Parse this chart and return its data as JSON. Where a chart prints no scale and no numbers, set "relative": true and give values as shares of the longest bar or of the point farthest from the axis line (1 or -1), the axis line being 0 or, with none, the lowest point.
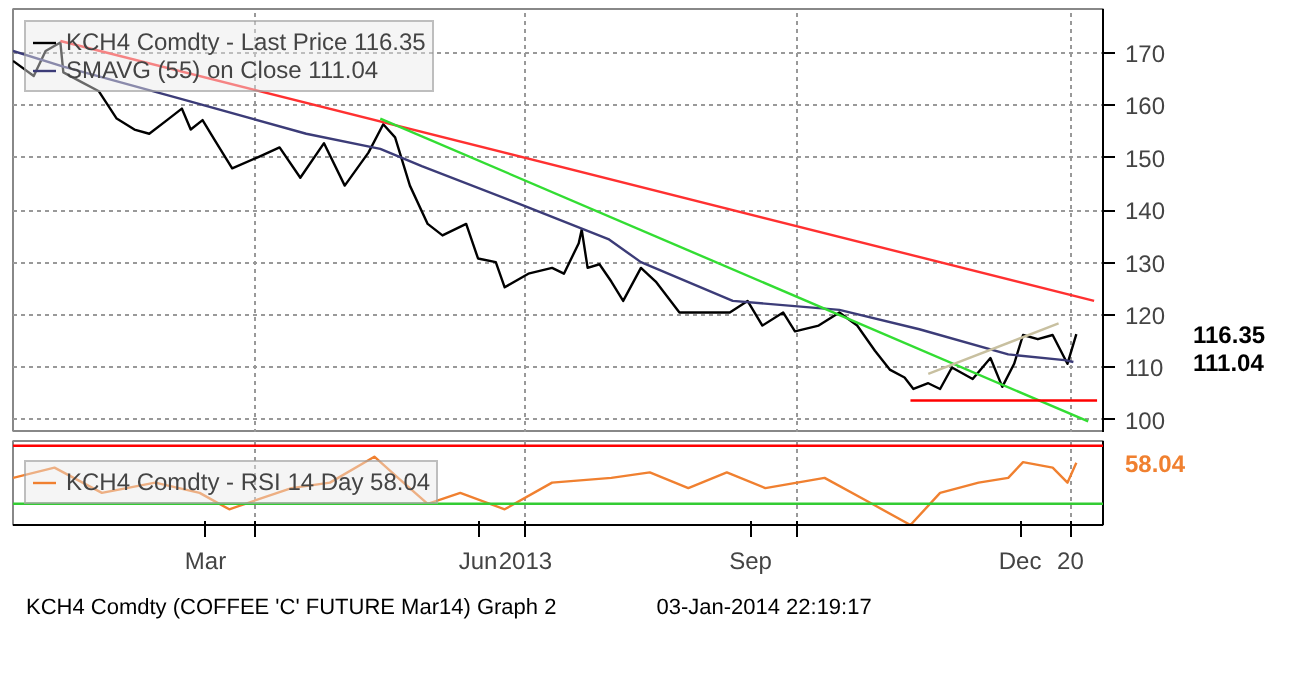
{
  "chart_data": [
    {
      "type": "line",
      "legend": "top left",
      "grid": true,
      "tick_labels": "y",
      "line_style": "solid",
      "marker": "none",
      "xlim": [
        "2013-01-09",
        "2014-01-12"
      ],
      "ylim": [
        97.5,
        178.4
      ],
      "yticks": [
        100,
        110,
        120,
        130,
        140,
        150,
        160,
        170
      ],
      "xticks": [
        {
          "value": "2013-04-01",
          "label": null
        },
        {
          "value": "2013-07-01",
          "label": null
        },
        {
          "value": "2013-10-01",
          "label": null
        },
        {
          "value": "2014-01-01",
          "label": null
        }
      ],
      "series": [
        {
          "name": "KCH4 Comdty - Last Price 116.35",
          "color": "#000000",
          "x": [
            "2013-01-09",
            "2013-01-16",
            "2013-01-20",
            "2013-01-25",
            "2013-01-26",
            "2013-02-01",
            "2013-02-07",
            "2013-02-13",
            "2013-02-19",
            "2013-02-24",
            "2013-03-02",
            "2013-03-07",
            "2013-03-10",
            "2013-03-14",
            "2013-03-18",
            "2013-03-24",
            "2013-04-02",
            "2013-04-09",
            "2013-04-16",
            "2013-04-24",
            "2013-05-01",
            "2013-05-09",
            "2013-05-14",
            "2013-05-18",
            "2013-05-23",
            "2013-05-29",
            "2013-06-03",
            "2013-06-11",
            "2013-06-15",
            "2013-06-21",
            "2013-06-24",
            "2013-07-02",
            "2013-07-10",
            "2013-07-14",
            "2013-07-19",
            "2013-07-20",
            "2013-07-22",
            "2013-07-26",
            "2013-07-30",
            "2013-08-03",
            "2013-08-09",
            "2013-08-14",
            "2013-08-22",
            "2013-08-30",
            "2013-09-08",
            "2013-09-14",
            "2013-09-19",
            "2013-09-26",
            "2013-09-30",
            "2013-10-08",
            "2013-10-15",
            "2013-10-21",
            "2013-10-27",
            "2013-11-01",
            "2013-11-06",
            "2013-11-09",
            "2013-11-14",
            "2013-11-18",
            "2013-11-22",
            "2013-11-29",
            "2013-12-05",
            "2013-12-09",
            "2013-12-13",
            "2013-12-16",
            "2013-12-21",
            "2013-12-26",
            "2013-12-31",
            "2014-01-03"
          ],
          "values": [
            168.5,
            165.6,
            170.4,
            172,
            166.3,
            164.5,
            162.7,
            157.5,
            155.4,
            154.6,
            157.2,
            159.4,
            155.4,
            157.2,
            153.5,
            148,
            150.2,
            152,
            146.2,
            152.8,
            144.7,
            151,
            156.4,
            153.9,
            144.7,
            137.4,
            135.2,
            137.4,
            130.8,
            130.1,
            125.3,
            127.9,
            129,
            127.9,
            133.7,
            136.3,
            129,
            129.7,
            126.4,
            122.7,
            129,
            126.4,
            120.5,
            120.5,
            120.5,
            122.7,
            118,
            120.5,
            116.9,
            118,
            120.5,
            118,
            113.2,
            109.6,
            108.1,
            105.9,
            107,
            105.9,
            110,
            107.8,
            111.8,
            106.3,
            110.7,
            116.2,
            115.4,
            116.2,
            110.7,
            116.35
          ]
        },
        {
          "name": "SMAVG (55) on Close 111.04",
          "color": "#3c3c78",
          "x": [
            "2013-01-09",
            "2013-01-26",
            "2013-03-07",
            "2013-04-18",
            "2013-05-13",
            "2013-05-27",
            "2013-06-30",
            "2013-07-29",
            "2013-08-09",
            "2013-09-09",
            "2013-10-15",
            "2013-11-11",
            "2013-12-11",
            "2013-12-30",
            "2014-01-02"
          ],
          "values": [
            170.4,
            167.4,
            161.2,
            154.6,
            151.7,
            148.4,
            141,
            134.5,
            130.1,
            122.7,
            121,
            117.3,
            112.5,
            111.4,
            111.04
          ]
        },
        {
          "color": "#ff3030",
          "x": [
            "2013-01-25",
            "2014-01-09"
          ],
          "values": [
            172.3,
            122.7
          ]
        },
        {
          "color": "#33dd33",
          "x": [
            "2013-05-13",
            "2014-01-07"
          ],
          "values": [
            157.5,
            99.7
          ]
        },
        {
          "color": "#ff0000",
          "x": [
            "2013-11-08",
            "2014-01-10"
          ],
          "values": [
            103.7,
            103.7
          ]
        },
        {
          "color": "#c8c0a0",
          "x": [
            "2013-11-14",
            "2013-12-28"
          ],
          "values": [
            108.8,
            118.4
          ]
        }
      ],
      "annotations": [
        "116.35",
        "111.04"
      ]
    },
    {
      "type": "line",
      "legend": "left",
      "grid": true,
      "tick_labels": "x",
      "line_style": "solid",
      "marker": "none",
      "relative": true,
      "xlim": [
        "2013-01-09",
        "2014-01-12"
      ],
      "xticks": [
        {
          "value": "2013-03-15",
          "label": "Mar"
        },
        {
          "value": "2013-06-15",
          "label": "Jun"
        },
        {
          "value": "2013-09-15",
          "label": "Sep"
        },
        {
          "value": "2013-12-15",
          "label": "Dec"
        },
        {
          "value": "2013-04-01",
          "label": null
        },
        {
          "value": "2013-07-01",
          "label": "2013"
        },
        {
          "value": "2013-10-01",
          "label": null
        },
        {
          "value": "2014-01-01",
          "label": "20"
        }
      ],
      "ref_lines": [
        {
          "axis": "y",
          "value": 1.16,
          "color": "#ff0000"
        },
        {
          "axis": "y",
          "value": 0.31,
          "color": "#33cc33"
        }
      ],
      "series": [
        {
          "name": "KCH4 Comdty - RSI 14 Day 58.04",
          "color": "#f08030",
          "x": [
            "2013-01-09",
            "2013-01-23",
            "2013-02-08",
            "2013-02-26",
            "2013-03-13",
            "2013-03-23",
            "2013-04-13",
            "2013-04-26",
            "2013-05-11",
            "2013-05-19",
            "2013-05-29",
            "2013-06-09",
            "2013-06-24",
            "2013-07-10",
            "2013-07-30",
            "2013-08-12",
            "2013-08-25",
            "2013-09-07",
            "2013-09-20",
            "2013-10-10",
            "2013-10-26",
            "2013-11-08",
            "2013-11-18",
            "2013-12-01",
            "2013-12-11",
            "2013-12-16",
            "2013-12-26",
            "2013-12-31",
            "2014-01-03"
          ],
          "values": [
            0.69,
            0.84,
            0.47,
            0.62,
            0.47,
            0.23,
            0.54,
            0.62,
            1,
            0.69,
            0.31,
            0.47,
            0.23,
            0.62,
            0.69,
            0.77,
            0.54,
            0.77,
            0.54,
            0.69,
            0.31,
            0,
            0.47,
            0.62,
            0.69,
            0.92,
            0.84,
            0.62,
            0.91
          ]
        }
      ],
      "annotations": [
        "58.04",
        "KCH4 Comdty (COFFEE 'C' FUTURE Mar14) Graph 2",
        "03-Jan-2014 22:19:17"
      ]
    }
  ]
}
